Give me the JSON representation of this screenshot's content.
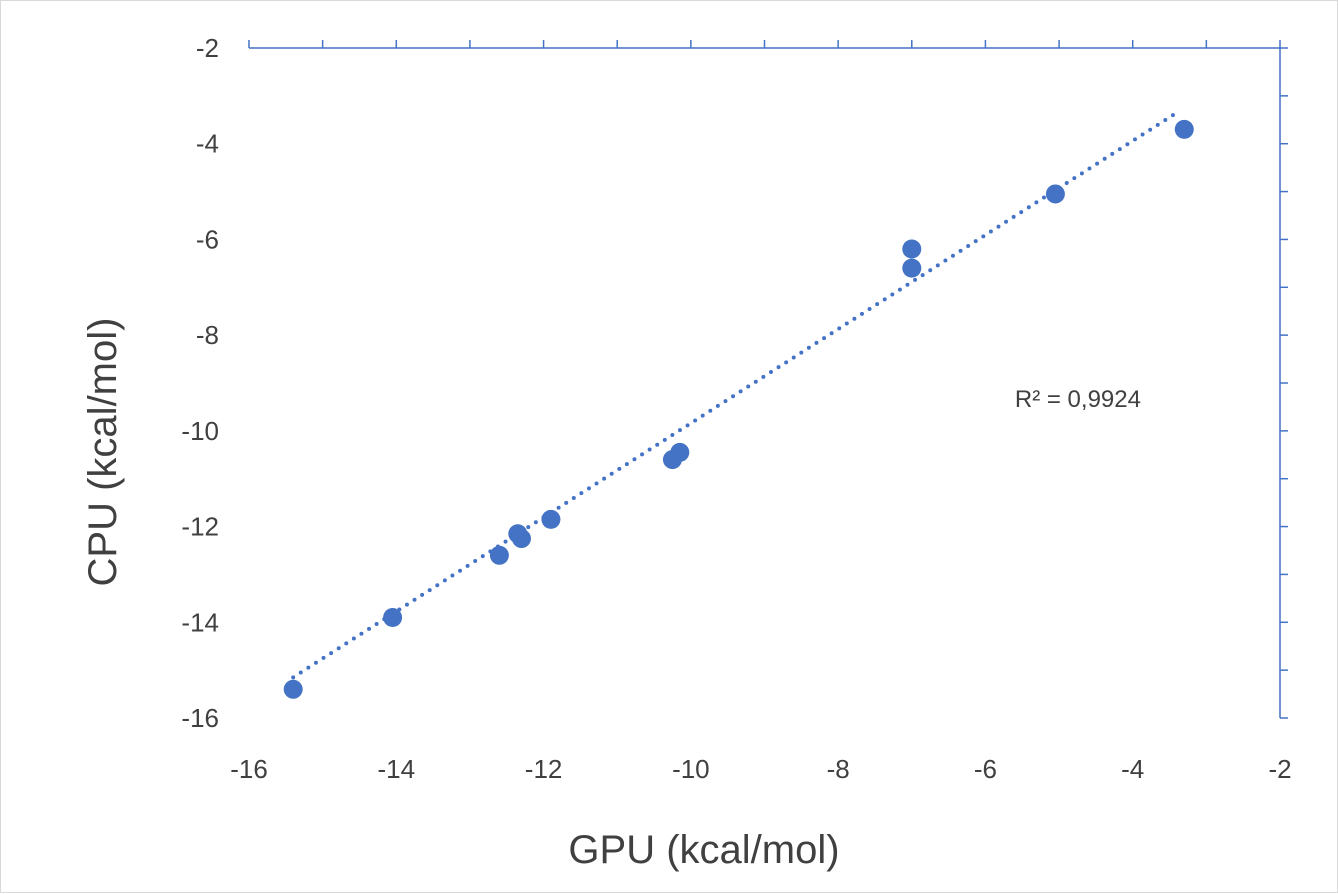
{
  "chart_data": {
    "type": "scatter",
    "xlabel": "GPU (kcal/mol)",
    "ylabel": "CPU (kcal/mol)",
    "xlim": [
      -16,
      -2
    ],
    "ylim": [
      -16,
      -2
    ],
    "x_ticks": [
      -16,
      -14,
      -12,
      -10,
      -8,
      -6,
      -4,
      -2
    ],
    "y_ticks": [
      -16,
      -14,
      -12,
      -10,
      -8,
      -6,
      -4,
      -2
    ],
    "x_tick_labels": [
      "-16",
      "-14",
      "-12",
      "-10",
      "-8",
      "-6",
      "-4",
      "-2"
    ],
    "y_tick_labels": [
      "-16",
      "-14",
      "-12",
      "-10",
      "-8",
      "-6",
      "-4",
      "-2"
    ],
    "points": [
      {
        "x": -15.4,
        "y": -15.4
      },
      {
        "x": -14.05,
        "y": -13.9
      },
      {
        "x": -12.6,
        "y": -12.6
      },
      {
        "x": -12.35,
        "y": -12.15
      },
      {
        "x": -12.3,
        "y": -12.25
      },
      {
        "x": -11.9,
        "y": -11.85
      },
      {
        "x": -10.25,
        "y": -10.6
      },
      {
        "x": -10.15,
        "y": -10.45
      },
      {
        "x": -7.0,
        "y": -6.2
      },
      {
        "x": -7.0,
        "y": -6.6
      },
      {
        "x": -5.05,
        "y": -5.05
      },
      {
        "x": -3.3,
        "y": -3.7
      }
    ],
    "trendline": {
      "type": "linear",
      "style": "dotted",
      "x_start": -15.4,
      "y_start": -15.15,
      "x_end": -3.4,
      "y_end": -3.35
    },
    "r_squared_label": "R² = 0,9924",
    "r_squared_position": {
      "x": -5.6,
      "y": -9.5
    },
    "colors": {
      "marker": "#4472C4",
      "trendline": "#4472C4",
      "axis": "#4472C4",
      "text": "#404040"
    },
    "grid": false,
    "legend": "none"
  }
}
